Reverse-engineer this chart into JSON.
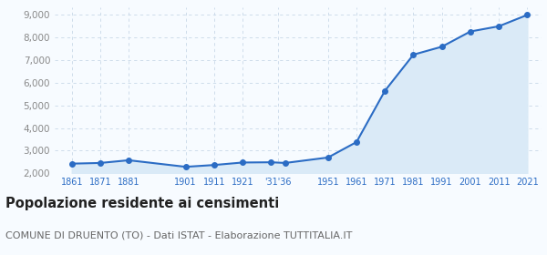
{
  "years": [
    1861,
    1871,
    1881,
    1901,
    1911,
    1921,
    1931,
    1936,
    1951,
    1961,
    1971,
    1981,
    1991,
    2001,
    2011,
    2021
  ],
  "x_labels": [
    "1861",
    "1871",
    "1881",
    "1901",
    "1911",
    "1921",
    "’31′36",
    "1951",
    "1961",
    "1971",
    "1981",
    "1991",
    "2001",
    "2011",
    "2021"
  ],
  "x_label_years": [
    1861,
    1871,
    1881,
    1901,
    1911,
    1921,
    1933,
    1951,
    1961,
    1971,
    1981,
    1991,
    2001,
    2011,
    2021
  ],
  "tick_labels_separate": [
    "1861",
    "1871",
    "1881",
    "1901",
    "1911",
    "1921",
    "'31'36",
    "1951",
    "1961",
    "1971",
    "1981",
    "1991",
    "2001",
    "2011",
    "2021"
  ],
  "tick_years": [
    1861,
    1871,
    1881,
    1901,
    1911,
    1921,
    1933.5,
    1951,
    1961,
    1971,
    1981,
    1991,
    2001,
    2011,
    2021
  ],
  "population": [
    2430,
    2460,
    2580,
    2290,
    2370,
    2480,
    2490,
    2460,
    2700,
    3380,
    5640,
    7230,
    7580,
    8250,
    8480,
    8980
  ],
  "line_color": "#2b6cc4",
  "fill_color": "#daeaf7",
  "marker_color": "#2b6cc4",
  "background_color": "#f7fbff",
  "grid_color": "#c8d8e8",
  "ylim": [
    2000,
    9300
  ],
  "yticks": [
    2000,
    3000,
    4000,
    5000,
    6000,
    7000,
    8000,
    9000
  ],
  "title": "Popolazione residente ai censimenti",
  "subtitle": "COMUNE DI DRUENTO (TO) - Dati ISTAT - Elaborazione TUTTITALIA.IT",
  "title_fontsize": 10.5,
  "subtitle_fontsize": 8.0
}
